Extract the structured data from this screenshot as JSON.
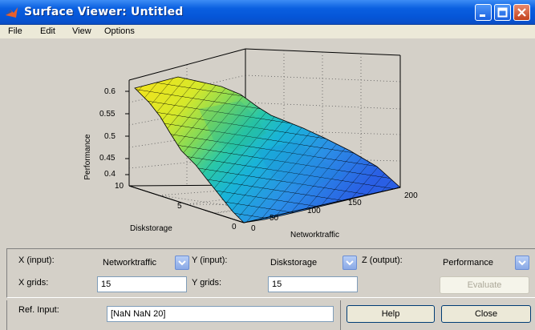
{
  "window": {
    "title": "Surface Viewer: Untitled",
    "app_icon": "matlab-icon"
  },
  "menu": [
    "File",
    "Edit",
    "View",
    "Options"
  ],
  "plot": {
    "zlabel": "Performance",
    "xlabel": "Networktraffic",
    "ylabel": "Diskstorage",
    "z_ticks": [
      "0.6",
      "0.55",
      "0.5",
      "0.45",
      "0.4"
    ],
    "x_ticks": [
      "0",
      "50",
      "100",
      "150",
      "200"
    ],
    "y_ticks": [
      "0",
      "5",
      "10"
    ]
  },
  "controls": {
    "x_label": "X (input):",
    "x_value": "Networktraffic",
    "y_label": "Y (input):",
    "y_value": "Diskstorage",
    "z_label": "Z (output):",
    "z_value": "Performance",
    "xgrids_label": "X grids:",
    "xgrids_value": "15",
    "ygrids_label": "Y grids:",
    "ygrids_value": "15",
    "evaluate_label": "Evaluate",
    "ref_label": "Ref. Input:",
    "ref_value": "[NaN NaN 20]",
    "help_label": "Help",
    "close_label": "Close"
  }
}
